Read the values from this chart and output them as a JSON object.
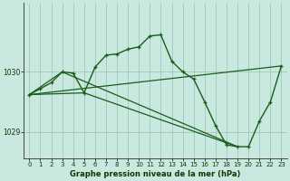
{
  "background_color": "#c8e8e0",
  "grid_color": "#a0c8b8",
  "line_color": "#1a5c1a",
  "title": "Graphe pression niveau de la mer (hPa)",
  "xlim": [
    -0.5,
    23.5
  ],
  "ylim": [
    1028.55,
    1031.15
  ],
  "yticks": [
    1029,
    1030
  ],
  "xticks": [
    0,
    1,
    2,
    3,
    4,
    5,
    6,
    7,
    8,
    9,
    10,
    11,
    12,
    13,
    14,
    15,
    16,
    17,
    18,
    19,
    20,
    21,
    22,
    23
  ],
  "main_series": {
    "x": [
      0,
      1,
      2,
      3,
      4,
      5,
      6,
      7,
      8,
      9,
      10,
      11,
      12,
      13,
      14,
      15,
      16,
      17,
      18,
      19,
      20,
      21,
      22,
      23
    ],
    "y": [
      1029.62,
      1029.72,
      1029.82,
      1030.0,
      1029.98,
      1029.65,
      1030.08,
      1030.28,
      1030.3,
      1030.38,
      1030.42,
      1030.6,
      1030.62,
      1030.18,
      1030.0,
      1029.88,
      1029.5,
      1029.1,
      1028.78,
      1028.75,
      1028.75,
      1029.18,
      1029.5,
      1030.1
    ]
  },
  "trend_lines": [
    {
      "x": [
        0,
        23
      ],
      "y": [
        1029.62,
        1030.1
      ]
    },
    {
      "x": [
        0,
        3,
        19
      ],
      "y": [
        1029.62,
        1030.0,
        1028.75
      ]
    },
    {
      "x": [
        0,
        5,
        19
      ],
      "y": [
        1029.62,
        1029.65,
        1028.75
      ]
    }
  ]
}
